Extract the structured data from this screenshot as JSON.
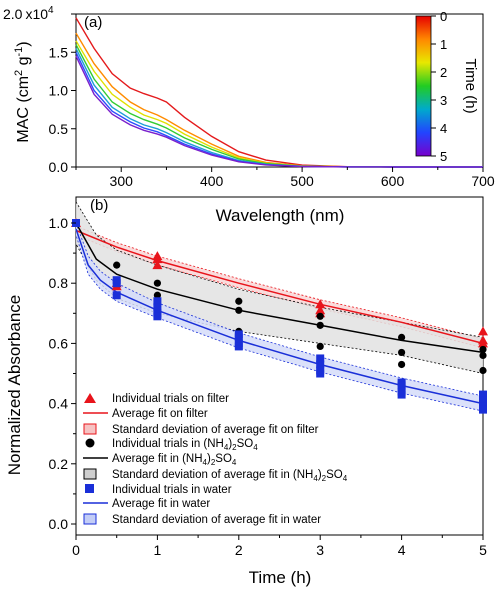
{
  "chart_data": [
    {
      "panel": "(a)",
      "type": "line",
      "xlabel": "Wavelength (nm)",
      "ylabel": "MAC (cm",
      "ylabel_sup": "2",
      "ylabel_mid": " g",
      "ylabel_sup2": "-1",
      "ylabel_end": ")",
      "xlim": [
        250,
        700
      ],
      "ylim": [
        0,
        20000
      ],
      "xticks": [
        "300",
        "400",
        "500",
        "600",
        "700"
      ],
      "yticks": [
        "0.0",
        "0.5",
        "1.0",
        "1.5"
      ],
      "ytick_top_mantissa": "2.0",
      "ytick_top_exp": "x10",
      "ytick_top_sup": "4",
      "colorbar": {
        "label": "Time (h)",
        "ticks": [
          "0",
          "1",
          "2",
          "3",
          "4",
          "5"
        ],
        "range": [
          0,
          5
        ],
        "colors": [
          "#e60000",
          "#ff8800",
          "#e8e800",
          "#22cc22",
          "#00aacc",
          "#2244ff",
          "#7700cc"
        ]
      },
      "series": [
        {
          "time_h": 0,
          "color": "#e41a1c",
          "x": [
            250,
            270,
            290,
            310,
            325,
            340,
            350,
            370,
            400,
            430,
            460,
            500,
            550,
            600,
            700
          ],
          "y": [
            19500,
            15500,
            12200,
            10300,
            9600,
            9000,
            8500,
            6500,
            4000,
            2000,
            900,
            250,
            40,
            10,
            0
          ]
        },
        {
          "time_h": 1,
          "color": "#ff8c00",
          "x": [
            250,
            270,
            290,
            310,
            325,
            340,
            350,
            370,
            400,
            430,
            460,
            500,
            550,
            600,
            700
          ],
          "y": [
            17500,
            13500,
            10500,
            8500,
            7500,
            6800,
            6200,
            4800,
            3000,
            1400,
            600,
            160,
            25,
            5,
            0
          ]
        },
        {
          "time_h": 2,
          "color": "#e0e000",
          "x": [
            250,
            270,
            290,
            310,
            325,
            340,
            350,
            370,
            400,
            430,
            460,
            500,
            550,
            600,
            700
          ],
          "y": [
            16500,
            12500,
            9500,
            7800,
            6800,
            6200,
            5700,
            4300,
            2600,
            1200,
            500,
            130,
            20,
            5,
            0
          ]
        },
        {
          "time_h": 3,
          "color": "#33cc33",
          "x": [
            250,
            270,
            290,
            310,
            325,
            340,
            350,
            370,
            400,
            430,
            460,
            500,
            550,
            600,
            700
          ],
          "y": [
            16000,
            11500,
            8500,
            7000,
            6200,
            5600,
            5100,
            3800,
            2300,
            1050,
            450,
            110,
            18,
            4,
            0
          ]
        },
        {
          "time_h": 4,
          "color": "#1f9fd6",
          "x": [
            250,
            270,
            290,
            310,
            325,
            340,
            350,
            370,
            400,
            430,
            460,
            500,
            550,
            600,
            700
          ],
          "y": [
            15500,
            10700,
            7800,
            6300,
            5500,
            5000,
            4500,
            3300,
            1900,
            850,
            350,
            90,
            15,
            3,
            0
          ]
        },
        {
          "time_h": 4.5,
          "color": "#2b4bff",
          "x": [
            250,
            270,
            290,
            310,
            325,
            340,
            350,
            370,
            400,
            430,
            460,
            500,
            550,
            600,
            700
          ],
          "y": [
            15000,
            10000,
            7300,
            5900,
            5100,
            4600,
            4100,
            3000,
            1700,
            750,
            300,
            75,
            12,
            2,
            0
          ]
        },
        {
          "time_h": 5,
          "color": "#7a1fcc",
          "x": [
            250,
            270,
            290,
            310,
            325,
            340,
            350,
            370,
            400,
            430,
            460,
            500,
            550,
            600,
            700
          ],
          "y": [
            14500,
            9500,
            6900,
            5500,
            4800,
            4300,
            3900,
            2800,
            1550,
            680,
            270,
            65,
            10,
            2,
            0
          ]
        }
      ]
    },
    {
      "panel": "(b)",
      "type": "scatter",
      "xlabel": "Time (h)",
      "ylabel": "Normalized Absorbance",
      "xlim": [
        0,
        5
      ],
      "ylim": [
        0,
        1.08
      ],
      "xticks": [
        "0",
        "1",
        "2",
        "3",
        "4",
        "5"
      ],
      "yticks": [
        "0.0",
        "0.2",
        "0.4",
        "0.6",
        "0.8",
        "1.0"
      ],
      "series": [
        {
          "group": "filter",
          "kind": "points",
          "marker": "triangle",
          "color": "#e8141b",
          "x": [
            0,
            0.5,
            0.5,
            1,
            1,
            1,
            3,
            3,
            3,
            5,
            5,
            5
          ],
          "y": [
            1.0,
            0.8,
            0.79,
            0.89,
            0.88,
            0.86,
            0.73,
            0.71,
            0.7,
            0.64,
            0.61,
            0.6
          ]
        },
        {
          "group": "filter",
          "kind": "fit",
          "color": "#e8141b",
          "x": [
            0,
            0.5,
            1,
            2,
            3,
            4,
            5
          ],
          "y": [
            0.975,
            0.92,
            0.875,
            0.8,
            0.73,
            0.67,
            0.6
          ],
          "upper": [
            0.99,
            0.935,
            0.89,
            0.815,
            0.745,
            0.685,
            0.615
          ],
          "lower": [
            0.96,
            0.905,
            0.86,
            0.785,
            0.715,
            0.655,
            0.585
          ]
        },
        {
          "group": "ammonium",
          "kind": "points",
          "marker": "circle",
          "color": "#000000",
          "x": [
            0,
            0.5,
            1,
            1,
            1,
            2,
            2,
            2,
            3,
            3,
            3,
            4,
            4,
            4,
            5,
            5,
            5
          ],
          "y": [
            1.0,
            0.86,
            0.8,
            0.76,
            0.72,
            0.74,
            0.71,
            0.64,
            0.69,
            0.66,
            0.59,
            0.62,
            0.57,
            0.53,
            0.58,
            0.56,
            0.51
          ]
        },
        {
          "group": "ammonium",
          "kind": "fit",
          "color": "#000000",
          "x": [
            0,
            0.25,
            0.5,
            1,
            2,
            3,
            4,
            5
          ],
          "y": [
            1.0,
            0.88,
            0.83,
            0.78,
            0.71,
            0.66,
            0.61,
            0.57
          ],
          "upper": [
            1.07,
            0.96,
            0.91,
            0.86,
            0.78,
            0.72,
            0.67,
            0.62
          ],
          "lower": [
            0.93,
            0.81,
            0.75,
            0.7,
            0.64,
            0.6,
            0.56,
            0.5
          ]
        },
        {
          "group": "water",
          "kind": "points",
          "marker": "square",
          "color": "#1a2fd8",
          "x": [
            0,
            0.5,
            0.5,
            0.5,
            1,
            1,
            1,
            1,
            2,
            2,
            2,
            2,
            3,
            3,
            3,
            3,
            4,
            4,
            4,
            4,
            5,
            5,
            5,
            5
          ],
          "y": [
            1.0,
            0.81,
            0.8,
            0.76,
            0.74,
            0.72,
            0.7,
            0.69,
            0.63,
            0.62,
            0.6,
            0.59,
            0.55,
            0.53,
            0.51,
            0.5,
            0.47,
            0.46,
            0.44,
            0.43,
            0.43,
            0.41,
            0.39,
            0.38
          ]
        },
        {
          "group": "water",
          "kind": "fit",
          "color": "#1a2fd8",
          "x": [
            0,
            0.15,
            0.3,
            0.5,
            1,
            2,
            3,
            4,
            5
          ],
          "y": [
            0.98,
            0.86,
            0.81,
            0.77,
            0.71,
            0.61,
            0.53,
            0.46,
            0.4
          ],
          "upper": [
            1.0,
            0.89,
            0.84,
            0.8,
            0.735,
            0.635,
            0.555,
            0.485,
            0.425
          ],
          "lower": [
            0.96,
            0.83,
            0.78,
            0.74,
            0.685,
            0.585,
            0.505,
            0.435,
            0.375
          ]
        }
      ],
      "legend": {
        "placement": "lower-left",
        "entries": [
          {
            "key": "tri",
            "text": "Individual trials on filter"
          },
          {
            "key": "redline",
            "text": "Average fit on filter"
          },
          {
            "key": "redbox",
            "text": "Standard deviation of average fit on filter"
          },
          {
            "key": "circ",
            "text": "Individual trials in (NH",
            "sub": "4",
            "mid": ")",
            "sub2": "2",
            "end": "SO",
            "sub3": "4"
          },
          {
            "key": "blackline",
            "text": "Average fit in (NH",
            "sub": "4",
            "mid": ")",
            "sub2": "2",
            "end": "SO",
            "sub3": "4"
          },
          {
            "key": "greybox",
            "text": "Standard deviation of average fit in (NH",
            "sub": "4",
            "mid": ")",
            "sub2": "2",
            "end": "SO",
            "sub3": "4"
          },
          {
            "key": "sq",
            "text": "Individual trials in water"
          },
          {
            "key": "blueline",
            "text": "Average fit in water"
          },
          {
            "key": "bluebox",
            "text": "Standard deviation of average fit in water"
          }
        ]
      }
    }
  ]
}
